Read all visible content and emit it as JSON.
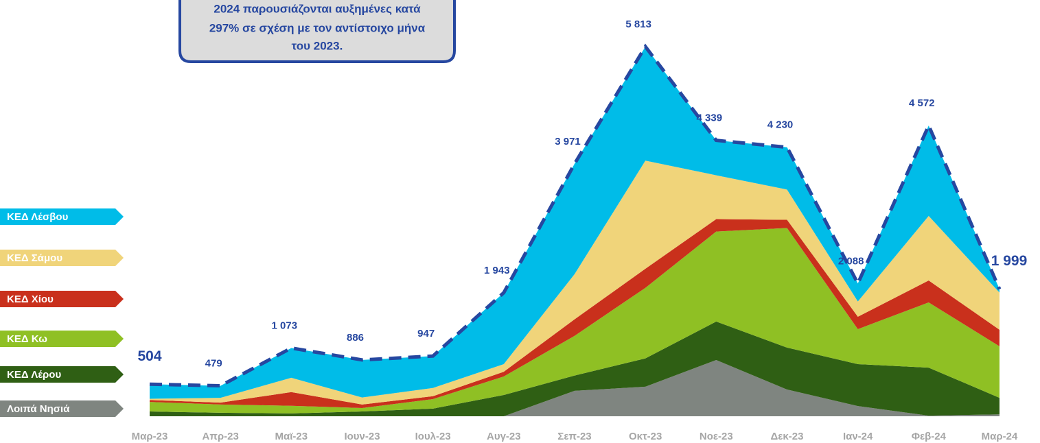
{
  "chart_data": {
    "type": "stacked_area",
    "annotation": [
      "2024 παρουσιάζονται αυξημένες κατά",
      "297% σε σχέση με τον αντίστοιχο μήνα",
      "του 2023."
    ],
    "categories": [
      "Μαρ-23",
      "Απρ-23",
      "Μαϊ-23",
      "Ιουν-23",
      "Ιουλ-23",
      "Αυγ-23",
      "Σεπ-23",
      "Οκτ-23",
      "Νοε-23",
      "Δεκ-23",
      "Ιαν-24",
      "Φεβ-24",
      "Μαρ-24"
    ],
    "series": [
      {
        "name": "Λοιπά Νησιά",
        "color": "#7f8580",
        "values": [
          0,
          0,
          0,
          0,
          0,
          0,
          400,
          465,
          885,
          420,
          160,
          10,
          30
        ]
      },
      {
        "name": "ΚΕΔ Λέρου",
        "color": "#2f5f14",
        "values": [
          75,
          55,
          45,
          75,
          120,
          335,
          240,
          445,
          605,
          660,
          660,
          755,
          260
        ]
      },
      {
        "name": "ΚΕΔ Κω",
        "color": "#8fc024",
        "values": [
          150,
          130,
          120,
          55,
          150,
          290,
          625,
          1110,
          1415,
          1880,
          550,
          1025,
          810
        ]
      },
      {
        "name": "ΚΕΔ Χίου",
        "color": "#c9301c",
        "values": [
          30,
          30,
          215,
          55,
          45,
          75,
          260,
          300,
          195,
          130,
          195,
          345,
          260
        ]
      },
      {
        "name": "ΚΕΔ Σάμου",
        "color": "#f0d47a",
        "values": [
          20,
          75,
          225,
          110,
          130,
          120,
          710,
          1700,
          690,
          475,
          240,
          1015,
          585
        ]
      },
      {
        "name": "ΚΕΔ Λέσβου",
        "color": "#00bce8",
        "values": [
          229,
          189,
          468,
          591,
          502,
          1123,
          1736,
          1793,
          549,
          665,
          283,
          1422,
          54
        ]
      }
    ],
    "totals": [
      504,
      479,
      1073,
      886,
      947,
      1943,
      3971,
      5813,
      4339,
      4230,
      2088,
      4572,
      1999
    ],
    "totals_labels": [
      "504",
      "479",
      "1 073",
      "886",
      "947",
      "1 943",
      "3 971",
      "5 813",
      "4 339",
      "4 230",
      "2 088",
      "4 572",
      "1 999"
    ],
    "totals_color": "#2647a0"
  }
}
